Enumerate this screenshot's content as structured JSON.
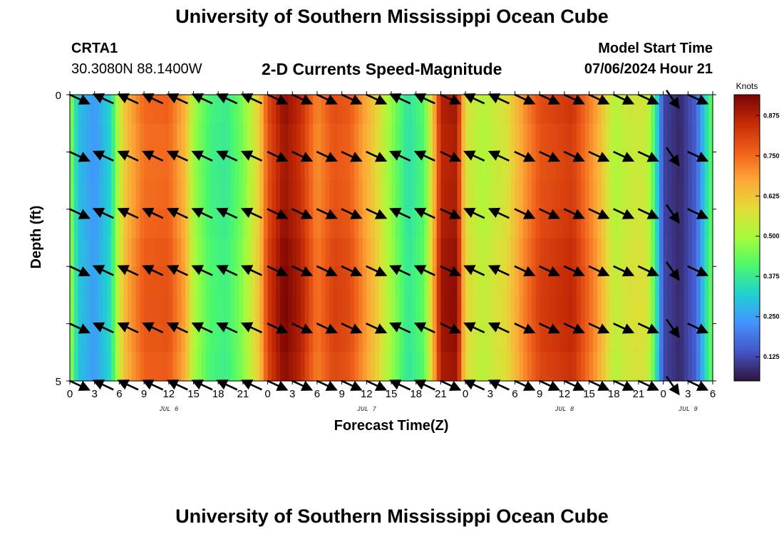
{
  "header": {
    "title": "University of Southern Mississippi Ocean Cube",
    "station_id": "CRTA1",
    "station_coords": "30.3080N  88.1400W",
    "subtitle": "2-D Currents Speed-Magnitude",
    "model_start_label": "Model Start Time",
    "model_start_value": "07/06/2024 Hour 21"
  },
  "footer": {
    "title": "University of Southern Mississippi Ocean Cube"
  },
  "chart_data": {
    "type": "heatmap",
    "title": "2-D Currents Speed-Magnitude",
    "xlabel": "Forecast Time(Z)",
    "ylabel": "Depth (ft)",
    "x_unit": "hours since 07/06 00Z",
    "x_range": [
      0,
      78
    ],
    "y_range": [
      0,
      5
    ],
    "y_ticks": [
      "0",
      "5"
    ],
    "x_tick_labels": [
      "0",
      "3",
      "6",
      "9",
      "12",
      "15",
      "18",
      "21",
      "0",
      "3",
      "6",
      "9",
      "12",
      "15",
      "18",
      "21",
      "0",
      "3",
      "6",
      "9",
      "12",
      "15",
      "18",
      "21",
      "0",
      "3",
      "6"
    ],
    "date_labels": [
      {
        "label": "JUL 6",
        "hour": 12
      },
      {
        "label": "JUL 7",
        "hour": 36
      },
      {
        "label": "JUL 8",
        "hour": 60
      },
      {
        "label": "JUL 9",
        "hour": 75
      }
    ],
    "colorbar": {
      "unit": "Knots",
      "min": 0.05,
      "max": 0.94,
      "ticks": [
        "0.125",
        "0.250",
        "0.375",
        "0.500",
        "0.625",
        "0.750",
        "0.875"
      ],
      "colors": [
        "#30123b",
        "#4454c4",
        "#4491fe",
        "#1fcfd5",
        "#49f86e",
        "#a4fc3b",
        "#e2dc37",
        "#fda937",
        "#f0601a",
        "#c52b06",
        "#7a0403"
      ]
    },
    "speed_series_knots": [
      {
        "hour": 0,
        "speed": 0.5
      },
      {
        "hour": 1,
        "speed": 0.3
      },
      {
        "hour": 3,
        "speed": 0.24
      },
      {
        "hour": 5,
        "speed": 0.34
      },
      {
        "hour": 6,
        "speed": 0.55
      },
      {
        "hour": 7,
        "speed": 0.66
      },
      {
        "hour": 9,
        "speed": 0.76
      },
      {
        "hour": 12,
        "speed": 0.77
      },
      {
        "hour": 14,
        "speed": 0.66
      },
      {
        "hour": 15,
        "speed": 0.5
      },
      {
        "hour": 17,
        "speed": 0.4
      },
      {
        "hour": 19,
        "speed": 0.38
      },
      {
        "hour": 21,
        "speed": 0.46
      },
      {
        "hour": 23,
        "speed": 0.62
      },
      {
        "hour": 24,
        "speed": 0.8
      },
      {
        "hour": 26,
        "speed": 0.92
      },
      {
        "hour": 28,
        "speed": 0.86
      },
      {
        "hour": 30,
        "speed": 0.72
      },
      {
        "hour": 32,
        "speed": 0.8
      },
      {
        "hour": 34,
        "speed": 0.78
      },
      {
        "hour": 37,
        "speed": 0.62
      },
      {
        "hour": 39,
        "speed": 0.48
      },
      {
        "hour": 41,
        "speed": 0.36
      },
      {
        "hour": 43,
        "speed": 0.42
      },
      {
        "hour": 44,
        "speed": 0.62
      },
      {
        "hour": 45,
        "speed": 0.88
      },
      {
        "hour": 47,
        "speed": 0.9
      },
      {
        "hour": 48,
        "speed": 0.58
      },
      {
        "hour": 50,
        "speed": 0.52
      },
      {
        "hour": 53,
        "speed": 0.58
      },
      {
        "hour": 55,
        "speed": 0.7
      },
      {
        "hour": 57,
        "speed": 0.8
      },
      {
        "hour": 61,
        "speed": 0.84
      },
      {
        "hour": 64,
        "speed": 0.68
      },
      {
        "hour": 66,
        "speed": 0.52
      },
      {
        "hour": 68,
        "speed": 0.56
      },
      {
        "hour": 70,
        "speed": 0.56
      },
      {
        "hour": 71,
        "speed": 0.4
      },
      {
        "hour": 72,
        "speed": 0.12
      },
      {
        "hour": 74,
        "speed": 0.08
      },
      {
        "hour": 76,
        "speed": 0.16
      },
      {
        "hour": 77,
        "speed": 0.32
      },
      {
        "hour": 78,
        "speed": 0.45
      }
    ],
    "vector_hours": [
      0,
      3,
      6,
      9,
      12,
      15,
      18,
      21,
      24,
      27,
      30,
      33,
      36,
      39,
      42,
      45,
      48,
      51,
      54,
      57,
      60,
      63,
      66,
      69,
      72,
      75
    ],
    "vector_depths_ft": [
      0,
      1,
      2,
      3,
      4,
      5
    ],
    "vector_direction_deg": [
      -1,
      1,
      1,
      1,
      1,
      1,
      1,
      1,
      -1,
      -1,
      -1,
      -1,
      -1,
      1,
      1,
      -1,
      1,
      1,
      -1,
      -1,
      -1,
      -1,
      -1,
      -1,
      -1,
      -1
    ],
    "vector_steep": [
      0,
      0,
      0,
      0,
      0,
      0,
      0,
      0,
      0,
      0,
      0,
      0,
      0,
      0,
      0,
      0,
      0,
      0,
      0,
      0,
      0,
      0,
      0,
      0,
      1,
      0
    ]
  }
}
